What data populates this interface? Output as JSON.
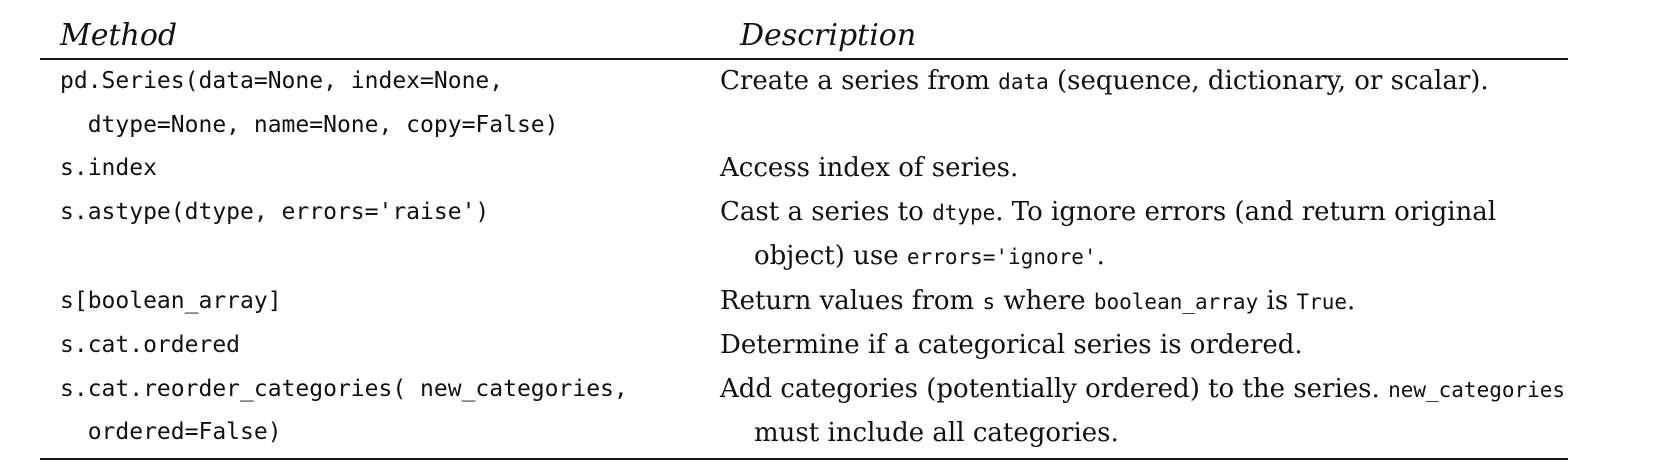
{
  "header": {
    "method": "Method",
    "description": "Description"
  },
  "rows": [
    {
      "method_lines": [
        "pd.Series(data=None, index=None,",
        "  dtype=None, name=None, copy=False)"
      ],
      "desc": [
        {
          "t": "Create a series from "
        },
        {
          "t": "data",
          "code": true
        },
        {
          "t": " (sequence, dictionary, or scalar)."
        }
      ]
    },
    {
      "method_lines": [
        "s.index"
      ],
      "desc": [
        {
          "t": "Access index of series."
        }
      ]
    },
    {
      "method_lines": [
        "s.astype(dtype, errors='raise')"
      ],
      "desc": [
        {
          "t": "Cast a series to "
        },
        {
          "t": "dtype",
          "code": true
        },
        {
          "t": ". To ignore errors (and return original object) use "
        },
        {
          "t": "errors='ignore'",
          "code": true
        },
        {
          "t": "."
        }
      ]
    },
    {
      "method_lines": [
        "s[boolean_array]"
      ],
      "desc": [
        {
          "t": "Return values from "
        },
        {
          "t": "s",
          "code": true
        },
        {
          "t": " where "
        },
        {
          "t": "boolean_array",
          "code": true
        },
        {
          "t": " is "
        },
        {
          "t": "True",
          "code": true
        },
        {
          "t": "."
        }
      ]
    },
    {
      "method_lines": [
        "s.cat.ordered"
      ],
      "desc": [
        {
          "t": "Determine if a categorical series is ordered."
        }
      ]
    },
    {
      "method_lines": [
        "s.cat.reorder_categories( new_categories,",
        "  ordered=False)"
      ],
      "desc": [
        {
          "t": "Add categories (potentially ordered) to the series. "
        },
        {
          "t": "new_categories",
          "code": true
        },
        {
          "t": " must include all categories."
        }
      ]
    }
  ]
}
